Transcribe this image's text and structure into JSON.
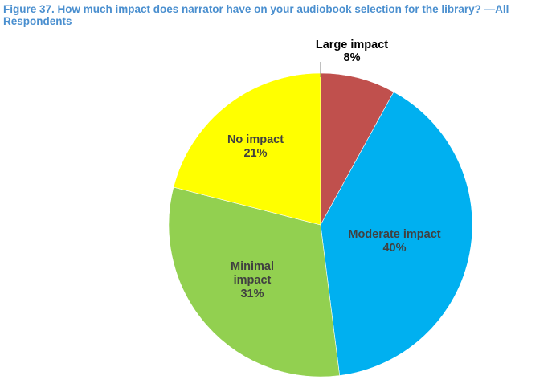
{
  "figure": {
    "title": "Figure 37. How much impact does narrator have on your audiobook selection for the library? —All Respondents"
  },
  "chart_data": {
    "type": "pie",
    "title": "Figure 37. How much impact does narrator have on your audiobook selection for the library? —All Respondents",
    "unit": "%",
    "start": "12 o'clock",
    "direction": "clockwise",
    "slices": [
      {
        "label": "Large impact",
        "value": 8,
        "value_label": "8%",
        "color": "#c0504d",
        "label_position": "outside"
      },
      {
        "label": "Moderate impact",
        "value": 40,
        "value_label": "40%",
        "color": "#00b0f0",
        "label_position": "inside"
      },
      {
        "label": "Minimal impact",
        "value": 31,
        "value_label": "31%",
        "color": "#92d050",
        "label_position": "inside"
      },
      {
        "label": "No impact",
        "value": 21,
        "value_label": "21%",
        "color": "#ffff00",
        "label_position": "inside"
      }
    ]
  }
}
